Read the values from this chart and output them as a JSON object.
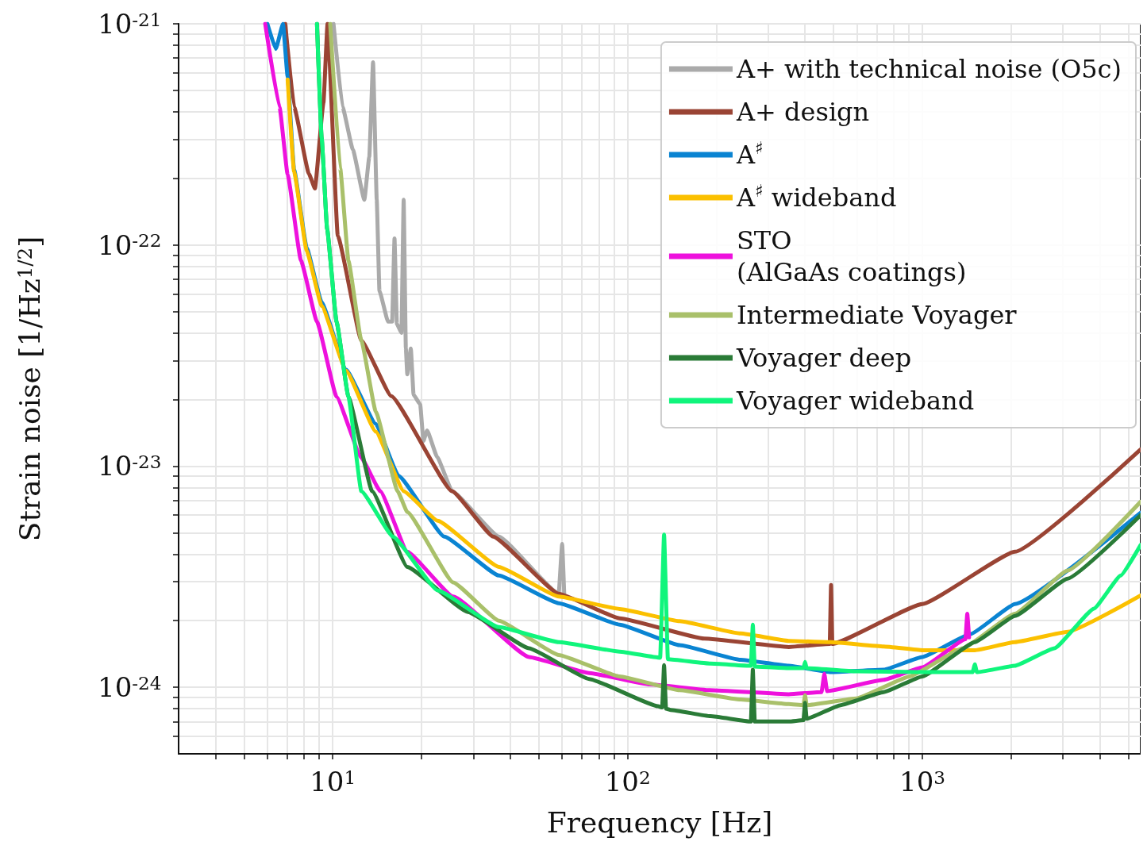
{
  "chart_data": {
    "type": "line",
    "xlabel": "Frequency [Hz]",
    "ylabel": "Strain noise [1/Hz$^{1/2}$]",
    "log": "xy",
    "grid": true,
    "legend": "top right",
    "marker": "none",
    "line_style": "solid",
    "xlim": [
      3,
      5500
    ],
    "ylim": [
      5e-25,
      1e-21
    ],
    "xticks": [
      {
        "value": 4,
        "label": null
      },
      {
        "value": 5,
        "label": null
      },
      {
        "value": 6,
        "label": null
      },
      {
        "value": 7,
        "label": null
      },
      {
        "value": 8,
        "label": null
      },
      {
        "value": 9,
        "label": null
      },
      {
        "value": 10,
        "label": "10$^{1}$"
      },
      {
        "value": 20,
        "label": null
      },
      {
        "value": 30,
        "label": null
      },
      {
        "value": 40,
        "label": null
      },
      {
        "value": 50,
        "label": null
      },
      {
        "value": 60,
        "label": null
      },
      {
        "value": 70,
        "label": null
      },
      {
        "value": 80,
        "label": null
      },
      {
        "value": 90,
        "label": null
      },
      {
        "value": 100,
        "label": "10$^{2}$"
      },
      {
        "value": 200,
        "label": null
      },
      {
        "value": 300,
        "label": null
      },
      {
        "value": 400,
        "label": null
      },
      {
        "value": 500,
        "label": null
      },
      {
        "value": 600,
        "label": null
      },
      {
        "value": 700,
        "label": null
      },
      {
        "value": 800,
        "label": null
      },
      {
        "value": 900,
        "label": null
      },
      {
        "value": 1000,
        "label": "10$^{3}$"
      },
      {
        "value": 2000,
        "label": null
      },
      {
        "value": 3000,
        "label": null
      },
      {
        "value": 4000,
        "label": null
      },
      {
        "value": 5000,
        "label": null
      }
    ],
    "yticks": [
      {
        "value": 6e-25,
        "label": null
      },
      {
        "value": 7e-25,
        "label": null
      },
      {
        "value": 8e-25,
        "label": null
      },
      {
        "value": 9e-25,
        "label": null
      },
      {
        "value": 1e-24,
        "label": "10$^{-24}$"
      },
      {
        "value": 2e-24,
        "label": null
      },
      {
        "value": 3e-24,
        "label": null
      },
      {
        "value": 4e-24,
        "label": null
      },
      {
        "value": 5e-24,
        "label": null
      },
      {
        "value": 6e-24,
        "label": null
      },
      {
        "value": 7e-24,
        "label": null
      },
      {
        "value": 8e-24,
        "label": null
      },
      {
        "value": 9e-24,
        "label": null
      },
      {
        "value": 1e-23,
        "label": "10$^{-23}$"
      },
      {
        "value": 2e-23,
        "label": null
      },
      {
        "value": 3e-23,
        "label": null
      },
      {
        "value": 4e-23,
        "label": null
      },
      {
        "value": 5e-23,
        "label": null
      },
      {
        "value": 6e-23,
        "label": null
      },
      {
        "value": 7e-23,
        "label": null
      },
      {
        "value": 8e-23,
        "label": null
      },
      {
        "value": 9e-23,
        "label": null
      },
      {
        "value": 1e-22,
        "label": "10$^{-22}$"
      },
      {
        "value": 2e-22,
        "label": null
      },
      {
        "value": 3e-22,
        "label": null
      },
      {
        "value": 4e-22,
        "label": null
      },
      {
        "value": 5e-22,
        "label": null
      },
      {
        "value": 6e-22,
        "label": null
      },
      {
        "value": 7e-22,
        "label": null
      },
      {
        "value": 8e-22,
        "label": null
      },
      {
        "value": 9e-22,
        "label": null
      },
      {
        "value": 1e-21,
        "label": "10$^{-21}$"
      }
    ],
    "series": [
      {
        "name": "A+ with technical noise (O5c)",
        "color": "#aaaaaa",
        "x": [
          10.06,
          10.8,
          11.7,
          12.8,
          13.3,
          13.7,
          14.1,
          14.4,
          15.4,
          15.9,
          16.2,
          16.5,
          17.1,
          17.4,
          17.7,
          17.9,
          18.4,
          18.8,
          19.8,
          20.3,
          20.9,
          22.6,
          25.4,
          36.6,
          58.4,
          60,
          61
        ],
        "values": [
          1e-21,
          4.2e-22,
          2.7e-22,
          1.6e-22,
          2.5e-22,
          6.7e-22,
          1.6e-22,
          6.2e-23,
          4.5e-23,
          4.5e-23,
          1.07e-22,
          4.4e-23,
          4e-23,
          1.6e-22,
          3.4e-23,
          2.6e-23,
          3.4e-23,
          2.1e-23,
          1.9e-23,
          1.3e-23,
          1.45e-23,
          1.1e-23,
          7.7e-24,
          4.8e-24,
          2.65e-24,
          4.45e-24,
          2.6e-24
        ]
      },
      {
        "name": "A+ design",
        "color": "#9a4434",
        "x": [
          6.9,
          7.4,
          8.3,
          8.7,
          9.3,
          9.6,
          10.4,
          12.5,
          15.8,
          25.4,
          35,
          58.4,
          94,
          182,
          352,
          485,
          490,
          495,
          1000,
          2060,
          5500
        ],
        "values": [
          1e-21,
          4.2e-22,
          2.1e-22,
          1.8e-22,
          4.4e-22,
          1e-21,
          1.1e-22,
          3.7e-23,
          2.07e-23,
          7.7e-24,
          4.8e-24,
          2.65e-24,
          2.05e-24,
          1.66e-24,
          1.52e-24,
          1.57e-24,
          2.9e-24,
          1.57e-24,
          2.38e-24,
          4.1e-24,
          1.19e-23
        ]
      },
      {
        "name": "A$^{♯}$",
        "color": "#0a84d2",
        "x": [
          6.0,
          6.41,
          6.78,
          7.03,
          7.39,
          8.16,
          9.17,
          11.1,
          14.0,
          16.7,
          23.9,
          36.6,
          58.4,
          94,
          150,
          242,
          352,
          489,
          739,
          1000,
          1457,
          2060,
          5500
        ],
        "values": [
          1e-21,
          7.7e-22,
          1e-21,
          5.75e-22,
          2.2e-22,
          9.7e-23,
          5.5e-23,
          2.73e-23,
          1.55e-23,
          9.05e-24,
          4.8e-24,
          3.2e-24,
          2.4e-24,
          1.92e-24,
          1.55e-24,
          1.33e-24,
          1.25e-24,
          1.17e-24,
          1.2e-24,
          1.37e-24,
          1.74e-24,
          2.38e-24,
          6.15e-24
        ]
      },
      {
        "name": "A$^{♯}$ wideband",
        "color": "#fbc000",
        "x": [
          7.03,
          7.39,
          8.16,
          9.17,
          11.1,
          14.0,
          17.4,
          22.7,
          36.6,
          58.4,
          94,
          150,
          242,
          352,
          489,
          739,
          1000,
          1507,
          2060,
          3110,
          5500
        ],
        "values": [
          5.6e-22,
          2.15e-22,
          9.4e-23,
          5.3e-23,
          2.7e-23,
          1.43e-23,
          7.7e-24,
          5.66e-24,
          3.5e-24,
          2.57e-24,
          2.26e-24,
          1.99e-24,
          1.75e-24,
          1.62e-24,
          1.6e-24,
          1.53e-24,
          1.47e-24,
          1.47e-24,
          1.6e-24,
          1.78e-24,
          2.6e-24
        ]
      },
      {
        "name": "STO\n(AlGaAs coatings)",
        "color": "#ee11dd",
        "x": [
          5.9,
          6.6,
          7.03,
          7.8,
          8.84,
          10.3,
          12.5,
          14.5,
          17.9,
          25.6,
          46.3,
          74.1,
          119,
          190,
          352,
          455,
          465,
          475,
          739,
          1000,
          1400,
          1420,
          1440
        ],
        "values": [
          1e-21,
          4.2e-22,
          2.08e-22,
          8.5e-23,
          4.5e-23,
          2.06e-23,
          1.09e-23,
          7.7e-24,
          4.1e-24,
          2.57e-24,
          1.37e-24,
          1.16e-24,
          1.03e-24,
          9.7e-25,
          9.3e-25,
          9.5e-25,
          1.15e-24,
          9.6e-25,
          1.08e-24,
          1.23e-24,
          1.65e-24,
          2.15e-24,
          1.68e-24
        ]
      },
      {
        "name": "Intermediate Voyager",
        "color": "#a9c06a",
        "x": [
          9.8,
          10.6,
          11.3,
          12.5,
          14.0,
          16.6,
          17.9,
          25.6,
          36.6,
          58.4,
          94,
          150,
          242,
          352,
          395,
          400,
          405,
          597,
          906,
          1370,
          2060,
          3110,
          5500
        ],
        "values": [
          1e-21,
          2.22e-22,
          8.5e-23,
          3.7e-23,
          1.76e-23,
          7.7e-24,
          6.2e-24,
          2.98e-24,
          2e-24,
          1.4e-24,
          1.12e-24,
          9.7e-25,
          8.8e-25,
          8.4e-25,
          8.3e-25,
          9.2e-25,
          8.3e-25,
          8.9e-25,
          1.12e-24,
          1.5e-24,
          2.15e-24,
          3.37e-24,
          6.9e-24
        ]
      },
      {
        "name": "Voyager deep",
        "color": "#2a7b37",
        "x": [
          8.84,
          9.17,
          9.57,
          10.3,
          11.3,
          13.6,
          17.9,
          28.7,
          46.3,
          74.1,
          127,
          131,
          133,
          135,
          140,
          191,
          262,
          266,
          270,
          352,
          395,
          400,
          405,
          528,
          739,
          1000,
          1507,
          2060,
          3110,
          5500
        ],
        "values": [
          1e-21,
          3.05e-22,
          1.18e-22,
          4.5e-23,
          2.06e-23,
          7.7e-24,
          3.5e-24,
          2.19e-24,
          1.5e-24,
          1.09e-24,
          8.2e-25,
          8.1e-25,
          1.26e-24,
          8e-25,
          7.9e-25,
          7.4e-25,
          7e-25,
          1.2e-24,
          7e-25,
          7e-25,
          7.1e-25,
          8.5e-25,
          7.2e-25,
          8.3e-25,
          9.5e-25,
          1.12e-24,
          1.6e-24,
          2.1e-24,
          3.1e-24,
          6e-24
        ]
      },
      {
        "name": "Voyager wideband",
        "color": "#10f57c",
        "x": [
          8.84,
          9.17,
          9.57,
          10.3,
          11.3,
          12.5,
          16.0,
          22.7,
          36.6,
          58.4,
          94,
          129,
          133,
          137,
          191,
          262,
          266,
          270,
          352,
          395,
          400,
          405,
          597,
          1000,
          1480,
          1507,
          1530,
          2060,
          2805,
          3820,
          4710,
          5500
        ],
        "values": [
          1e-21,
          3.05e-22,
          1.18e-22,
          4.5e-23,
          2.06e-23,
          7.7e-24,
          4.8e-24,
          2.74e-24,
          1.87e-24,
          1.6e-24,
          1.45e-24,
          1.36e-24,
          4.9e-24,
          1.34e-24,
          1.28e-24,
          1.25e-24,
          1.92e-24,
          1.24e-24,
          1.22e-24,
          1.22e-24,
          1.3e-24,
          1.22e-24,
          1.18e-24,
          1.17e-24,
          1.17e-24,
          1.27e-24,
          1.17e-24,
          1.25e-24,
          1.5e-24,
          2.27e-24,
          3.2e-24,
          4.4e-24
        ]
      }
    ]
  }
}
